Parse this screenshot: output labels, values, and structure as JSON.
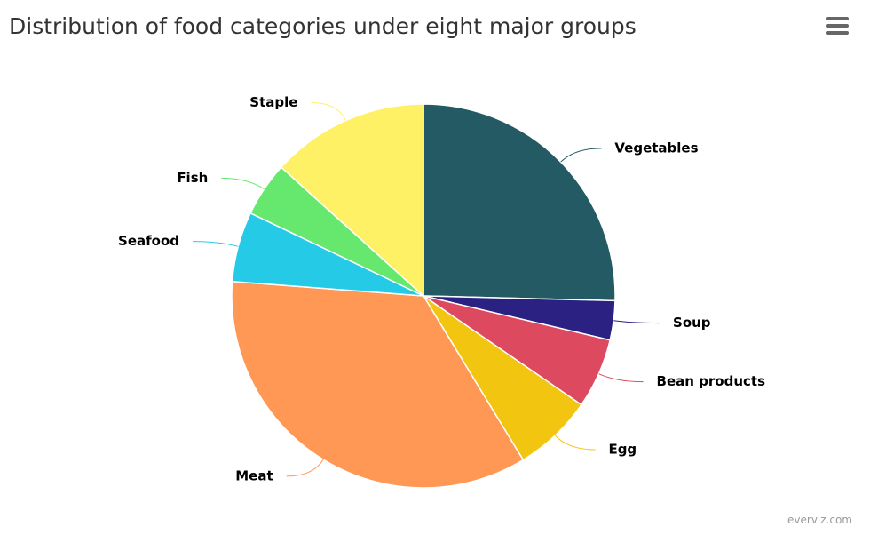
{
  "chart_data": {
    "type": "pie",
    "title": "Distribution of food categories under eight major groups",
    "categories": [
      "Vegetables",
      "Soup",
      "Bean products",
      "Egg",
      "Meat",
      "Seafood",
      "Fish",
      "Staple"
    ],
    "values": [
      25.4,
      3.3,
      5.9,
      6.7,
      34.9,
      5.9,
      4.6,
      13.3
    ],
    "colors": [
      "#235a63",
      "#2a2182",
      "#dd4a60",
      "#f2c511",
      "#ff9755",
      "#25cbe6",
      "#66e86f",
      "#fff166"
    ],
    "credit": "everviz.com"
  }
}
